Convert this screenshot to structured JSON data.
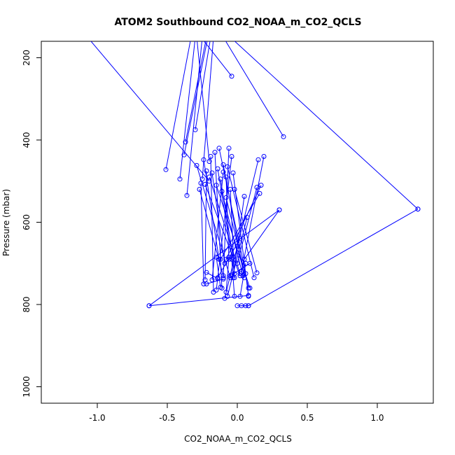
{
  "chart_data": {
    "type": "line",
    "title": "ATOM2 Southbound CO2_NOAA_m_CO2_QCLS",
    "xlabel": "CO2_NOAA_m_CO2_QCLS",
    "ylabel": "Pressure (mbar)",
    "xlim": [
      -1.4,
      1.4
    ],
    "ylim": [
      1040,
      160
    ],
    "y_reversed": true,
    "x_ticks": [
      -1.0,
      -0.5,
      0.0,
      0.5,
      1.0
    ],
    "x_tick_labels": [
      "-1.0",
      "-0.5",
      "0.0",
      "0.5",
      "1.0"
    ],
    "y_ticks": [
      200,
      400,
      600,
      800,
      1000
    ],
    "y_tick_labels": [
      "200",
      "400",
      "600",
      "800",
      "1000"
    ],
    "marker": "open-circle",
    "grid": false,
    "legend": "none",
    "series": [
      {
        "color": "#0000ff",
        "x": [
          -1.07,
          -0.2
        ],
        "y": [
          150,
          500
        ]
      },
      {
        "color": "#0000ff",
        "x": [
          -0.41,
          -0.3
        ],
        "y": [
          495,
          150
        ]
      },
      {
        "color": "#0000ff",
        "x": [
          -0.36,
          -0.25
        ],
        "y": [
          535,
          150
        ]
      },
      {
        "color": "#0000ff",
        "x": [
          -0.51,
          -0.33
        ],
        "y": [
          472,
          150
        ]
      },
      {
        "color": "#0000ff",
        "x": [
          -0.37,
          -0.22
        ],
        "y": [
          405,
          150
        ]
      },
      {
        "color": "#0000ff",
        "x": [
          -0.3,
          -0.19
        ],
        "y": [
          375,
          150
        ]
      },
      {
        "color": "#0000ff",
        "x": [
          -0.38,
          -0.21
        ],
        "y": [
          436,
          150
        ]
      },
      {
        "color": "#0000ff",
        "x": [
          -0.25,
          -0.17
        ],
        "y": [
          495,
          150
        ]
      },
      {
        "color": "#0000ff",
        "x": [
          -0.2,
          -0.29
        ],
        "y": [
          452,
          150
        ]
      },
      {
        "color": "#0000ff",
        "x": [
          -0.04,
          -0.26
        ],
        "y": [
          245,
          150
        ]
      },
      {
        "color": "#0000ff",
        "x": [
          0.33,
          -0.1
        ],
        "y": [
          392,
          150
        ]
      },
      {
        "color": "#0000ff",
        "x": [
          1.29,
          -0.05
        ],
        "y": [
          568,
          150
        ]
      },
      {
        "color": "#0000ff",
        "x": [
          0.3,
          0.05
        ],
        "y": [
          570,
          690
        ]
      },
      {
        "color": "#0000ff",
        "x": [
          0.19,
          0.03
        ],
        "y": [
          440,
          720
        ]
      },
      {
        "color": "#0000ff",
        "x": [
          0.15,
          -0.05
        ],
        "y": [
          448,
          730
        ]
      },
      {
        "color": "#0000ff",
        "x": [
          0.17,
          -0.08
        ],
        "y": [
          510,
          690
        ]
      },
      {
        "color": "#0000ff",
        "x": [
          0.14,
          0.0
        ],
        "y": [
          515,
          700
        ]
      },
      {
        "color": "#0000ff",
        "x": [
          0.16,
          -0.12
        ],
        "y": [
          530,
          690
        ]
      },
      {
        "color": "#0000ff",
        "x": [
          -0.27,
          -0.1
        ],
        "y": [
          520,
          730
        ]
      },
      {
        "color": "#0000ff",
        "x": [
          -0.23,
          0.02
        ],
        "y": [
          508,
          730
        ]
      },
      {
        "color": "#0000ff",
        "x": [
          -0.29,
          -0.05
        ],
        "y": [
          462,
          735
        ]
      },
      {
        "color": "#0000ff",
        "x": [
          -0.24,
          -0.13
        ],
        "y": [
          448,
          690
        ]
      },
      {
        "color": "#0000ff",
        "x": [
          -0.13,
          0.06
        ],
        "y": [
          420,
          725
        ]
      },
      {
        "color": "#0000ff",
        "x": [
          -0.06,
          -0.1
        ],
        "y": [
          420,
          735
        ]
      },
      {
        "color": "#0000ff",
        "x": [
          -0.04,
          -0.15
        ],
        "y": [
          440,
          765
        ]
      },
      {
        "color": "#0000ff",
        "x": [
          -0.14,
          -0.02
        ],
        "y": [
          470,
          725
        ]
      },
      {
        "color": "#0000ff",
        "x": [
          -0.1,
          -0.18
        ],
        "y": [
          478,
          740
        ]
      },
      {
        "color": "#0000ff",
        "x": [
          -0.08,
          -0.06
        ],
        "y": [
          490,
          690
        ]
      },
      {
        "color": "#0000ff",
        "x": [
          -0.12,
          -0.03
        ],
        "y": [
          495,
          685
        ]
      },
      {
        "color": "#0000ff",
        "x": [
          -0.18,
          -0.09
        ],
        "y": [
          480,
          700
        ]
      },
      {
        "color": "#0000ff",
        "x": [
          -0.05,
          -0.02
        ],
        "y": [
          520,
          735
        ]
      },
      {
        "color": "#0000ff",
        "x": [
          -0.11,
          0.04
        ],
        "y": [
          525,
          730
        ]
      },
      {
        "color": "#0000ff",
        "x": [
          -0.08,
          0.08
        ],
        "y": [
          540,
          760
        ]
      },
      {
        "color": "#0000ff",
        "x": [
          0.05,
          -0.03
        ],
        "y": [
          537,
          735
        ]
      },
      {
        "color": "#0000ff",
        "x": [
          0.07,
          -0.07
        ],
        "y": [
          588,
          780
        ]
      },
      {
        "color": "#0000ff",
        "x": [
          -0.15,
          0.09
        ],
        "y": [
          510,
          760
        ]
      },
      {
        "color": "#0000ff",
        "x": [
          -0.22,
          -0.23
        ],
        "y": [
          475,
          740
        ]
      },
      {
        "color": "#0000ff",
        "x": [
          -0.26,
          -0.24
        ],
        "y": [
          505,
          750
        ]
      },
      {
        "color": "#0000ff",
        "x": [
          -0.19,
          -0.17
        ],
        "y": [
          440,
          770
        ]
      },
      {
        "color": "#0000ff",
        "x": [
          -0.16,
          -0.11
        ],
        "y": [
          430,
          760
        ]
      },
      {
        "color": "#0000ff",
        "x": [
          -0.2,
          0.02
        ],
        "y": [
          490,
          725
        ]
      },
      {
        "color": "#0000ff",
        "x": [
          -0.1,
          0.05
        ],
        "y": [
          460,
          735
        ]
      },
      {
        "color": "#0000ff",
        "x": [
          -0.03,
          0.08
        ],
        "y": [
          480,
          780
        ]
      },
      {
        "color": "#0000ff",
        "x": [
          -0.07,
          0.12
        ],
        "y": [
          465,
          735
        ]
      },
      {
        "color": "#0000ff",
        "x": [
          -0.02,
          0.14
        ],
        "y": [
          520,
          723
        ]
      },
      {
        "color": "#0000ff",
        "x": [
          0.02,
          -0.14
        ],
        "y": [
          640,
          735
        ]
      },
      {
        "color": "#0000ff",
        "x": [
          0.0,
          -0.09
        ],
        "y": [
          658,
          785
        ]
      },
      {
        "color": "#0000ff",
        "x": [
          -0.04,
          -0.02
        ],
        "y": [
          690,
          780
        ]
      },
      {
        "color": "#0000ff",
        "x": [
          0.06,
          0.02
        ],
        "y": [
          700,
          780
        ]
      },
      {
        "color": "#0000ff",
        "x": [
          0.09,
          -0.04
        ],
        "y": [
          700,
          728
        ]
      },
      {
        "color": "#0000ff",
        "x": [
          -0.06,
          -0.08
        ],
        "y": [
          685,
          770
        ]
      },
      {
        "color": "#0000ff",
        "x": [
          -0.15,
          -0.12
        ],
        "y": [
          685,
          758
        ]
      },
      {
        "color": "#0000ff",
        "x": [
          -0.22,
          -0.14
        ],
        "y": [
          722,
          737
        ]
      },
      {
        "color": "#0000ff",
        "x": [
          -0.22,
          -0.1
        ],
        "y": [
          750,
          738
        ]
      },
      {
        "color": "#0000ff",
        "x": [
          0.3,
          -0.63
        ],
        "y": [
          570,
          803
        ]
      },
      {
        "color": "#0000ff",
        "x": [
          1.29,
          0.08
        ],
        "y": [
          568,
          803
        ]
      },
      {
        "color": "#0000ff",
        "x": [
          -0.63,
          0.08
        ],
        "y": [
          803,
          778
        ]
      },
      {
        "color": "#0000ff",
        "x": [
          0.08,
          -0.0
        ],
        "y": [
          803,
          803
        ]
      },
      {
        "color": "#0000ff",
        "x": [
          0.03,
          0.06
        ],
        "y": [
          803,
          803
        ]
      }
    ]
  }
}
